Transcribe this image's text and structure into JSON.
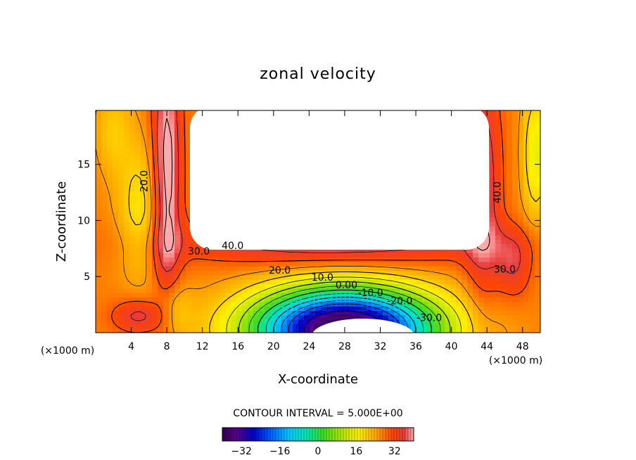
{
  "chart_data": {
    "type": "contour",
    "title": "zonal velocity",
    "xlabel": "X-coordinate",
    "ylabel": "Z-coordinate",
    "x_unit": "(×1000 m)",
    "y_unit": "(×1000 m)",
    "xlim": [
      0,
      50
    ],
    "ylim": [
      0,
      19.8
    ],
    "x_ticks": [
      4,
      8,
      12,
      16,
      20,
      24,
      28,
      32,
      36,
      40,
      44,
      48
    ],
    "y_ticks": [
      5,
      10,
      15
    ],
    "contour_interval_text": "CONTOUR INTERVAL = 5.000E+00",
    "contour_interval": 5.0,
    "colorbar": {
      "min": -40,
      "max": 40,
      "ticks": [
        -32,
        -16,
        0,
        16,
        32
      ],
      "tick_labels": [
        "−32",
        "−16",
        "0",
        "16",
        "32"
      ]
    },
    "contour_labels": [
      {
        "text": "20.0",
        "x": 5.5,
        "z": 13.5
      },
      {
        "text": "40.0",
        "x": 15.4,
        "z": 7.7
      },
      {
        "text": "30.0",
        "x": 11.6,
        "z": 7.2
      },
      {
        "text": "20.0",
        "x": 20.7,
        "z": 5.5
      },
      {
        "text": "10.0",
        "x": 25.5,
        "z": 4.9
      },
      {
        "text": "0.00",
        "x": 28.2,
        "z": 4.2
      },
      {
        "text": "-10.0",
        "x": 30.9,
        "z": 3.5
      },
      {
        "text": "-20.0",
        "x": 34.2,
        "z": 2.8
      },
      {
        "text": "-30.0",
        "x": 37.5,
        "z": 1.3
      },
      {
        "text": "30.0",
        "x": 46.0,
        "z": 5.6
      },
      {
        "text": "40.0",
        "x": 45.2,
        "z": 12.5
      }
    ]
  }
}
